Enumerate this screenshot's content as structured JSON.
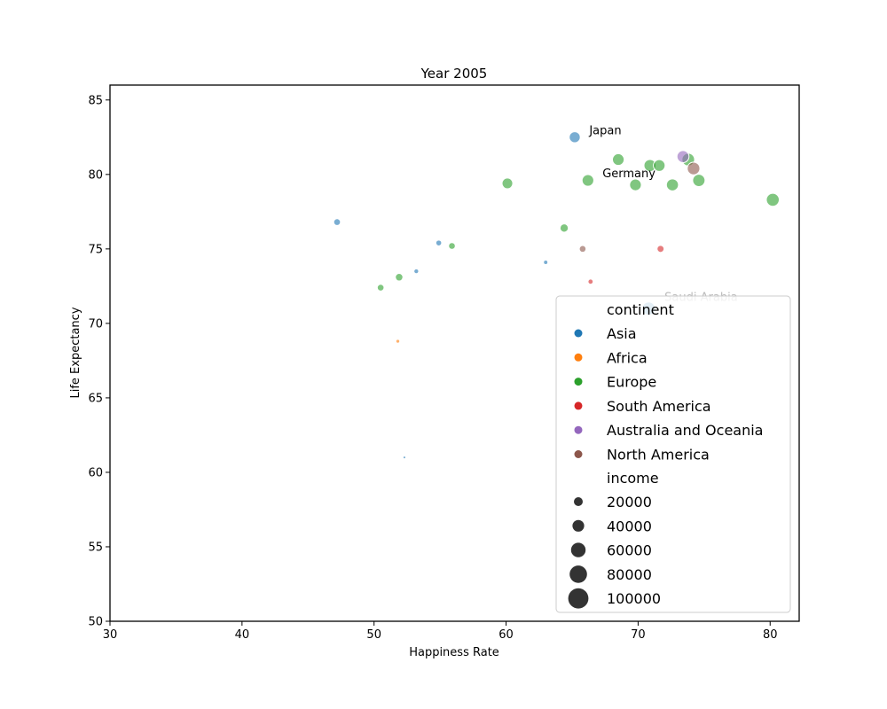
{
  "chart_data": {
    "type": "scatter",
    "title": "Year 2005",
    "xlabel": "Happiness Rate",
    "ylabel": "Life Expectancy",
    "xlim": [
      30,
      82.2
    ],
    "ylim": [
      50,
      86
    ],
    "xticks": [
      30,
      40,
      50,
      60,
      70,
      80
    ],
    "yticks": [
      50,
      55,
      60,
      65,
      70,
      75,
      80,
      85
    ],
    "grid": false,
    "legend_position": "lower-right",
    "hue_title": "continent",
    "size_title": "income",
    "continents": [
      {
        "name": "Asia",
        "color": "#1f77b4"
      },
      {
        "name": "Africa",
        "color": "#ff7f0e"
      },
      {
        "name": "Europe",
        "color": "#2ca02c"
      },
      {
        "name": "South America",
        "color": "#d62728"
      },
      {
        "name": "Australia and Oceania",
        "color": "#9467bd"
      },
      {
        "name": "North America",
        "color": "#8c564b"
      }
    ],
    "size_legend": [
      20000,
      40000,
      60000,
      80000,
      100000
    ],
    "points": [
      {
        "x": 65.2,
        "y": 82.5,
        "continent": "Asia",
        "income": 32000
      },
      {
        "x": 47.2,
        "y": 76.8,
        "continent": "Asia",
        "income": 12000
      },
      {
        "x": 54.9,
        "y": 75.4,
        "continent": "Asia",
        "income": 9000
      },
      {
        "x": 53.2,
        "y": 73.5,
        "continent": "Asia",
        "income": 6000
      },
      {
        "x": 63.0,
        "y": 74.1,
        "continent": "Asia",
        "income": 5000
      },
      {
        "x": 52.3,
        "y": 61.0,
        "continent": "Asia",
        "income": 2000
      },
      {
        "x": 70.8,
        "y": 71.0,
        "continent": "Asia",
        "income": 45000
      },
      {
        "x": 51.8,
        "y": 68.8,
        "continent": "Africa",
        "income": 4000
      },
      {
        "x": 60.1,
        "y": 79.4,
        "continent": "Europe",
        "income": 30000
      },
      {
        "x": 66.2,
        "y": 79.6,
        "continent": "Europe",
        "income": 36000
      },
      {
        "x": 68.5,
        "y": 81.0,
        "continent": "Europe",
        "income": 36000
      },
      {
        "x": 70.9,
        "y": 80.6,
        "continent": "Europe",
        "income": 38000
      },
      {
        "x": 71.6,
        "y": 80.6,
        "continent": "Europe",
        "income": 36000
      },
      {
        "x": 69.8,
        "y": 79.3,
        "continent": "Europe",
        "income": 36000
      },
      {
        "x": 72.6,
        "y": 79.3,
        "continent": "Europe",
        "income": 38000
      },
      {
        "x": 73.8,
        "y": 81.0,
        "continent": "Europe",
        "income": 42000
      },
      {
        "x": 74.6,
        "y": 79.6,
        "continent": "Europe",
        "income": 40000
      },
      {
        "x": 80.2,
        "y": 78.3,
        "continent": "Europe",
        "income": 44000
      },
      {
        "x": 64.4,
        "y": 76.4,
        "continent": "Europe",
        "income": 18000
      },
      {
        "x": 55.9,
        "y": 75.2,
        "continent": "Europe",
        "income": 12000
      },
      {
        "x": 51.9,
        "y": 73.1,
        "continent": "Europe",
        "income": 15000
      },
      {
        "x": 50.5,
        "y": 72.4,
        "continent": "Europe",
        "income": 12000
      },
      {
        "x": 71.7,
        "y": 75.0,
        "continent": "South America",
        "income": 13000
      },
      {
        "x": 66.4,
        "y": 72.8,
        "continent": "South America",
        "income": 7000
      },
      {
        "x": 73.4,
        "y": 81.2,
        "continent": "Australia and Oceania",
        "income": 38000
      },
      {
        "x": 74.2,
        "y": 80.4,
        "continent": "North America",
        "income": 42000
      },
      {
        "x": 65.8,
        "y": 75.0,
        "continent": "North America",
        "income": 12000
      }
    ],
    "annotations": [
      {
        "text": "Japan",
        "x": 66.3,
        "y": 82.7,
        "color": "#000000"
      },
      {
        "text": "Germany",
        "x": 67.3,
        "y": 79.8,
        "color": "#000000"
      },
      {
        "text": "Saudi Arabia",
        "x": 72.0,
        "y": 71.5,
        "color": "#bbbbbb"
      }
    ]
  }
}
